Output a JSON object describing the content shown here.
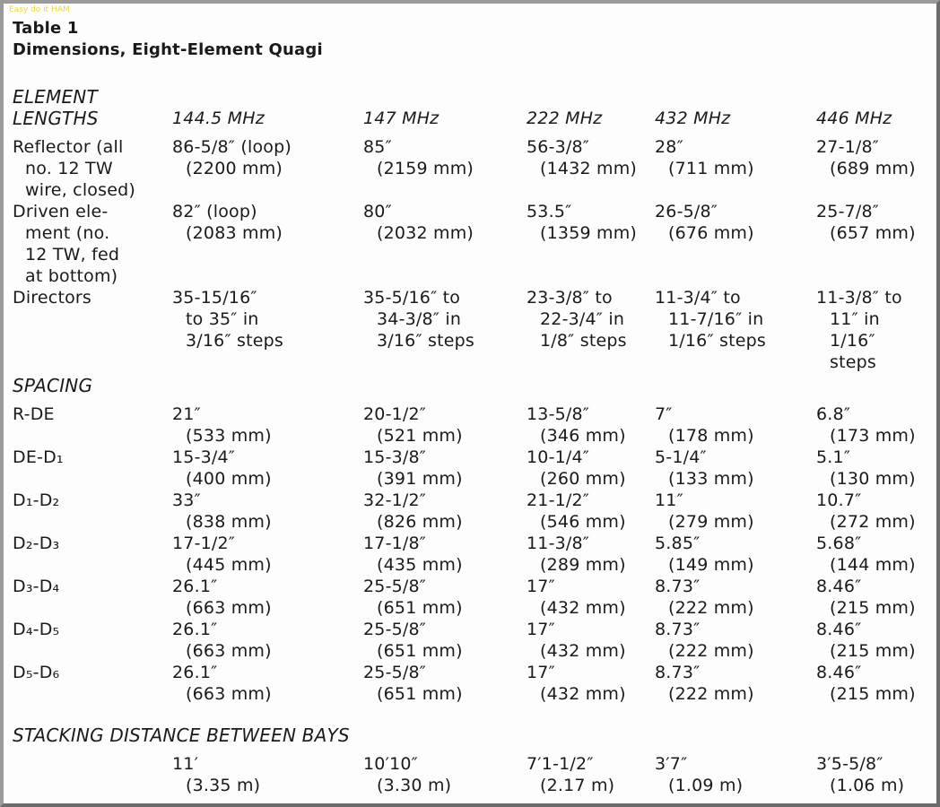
{
  "watermark": "Easy do it HAM",
  "header": {
    "title": "Table 1",
    "subtitle": "Dimensions, Eight-Element Quagi"
  },
  "columns": [
    "144.5 MHz",
    "147 MHz",
    "222 MHz",
    "432 MHz",
    "446 MHz"
  ],
  "sections": [
    {
      "heading": [
        "ELEMENT",
        "LENGTHS"
      ],
      "rows": [
        {
          "label": [
            "Reflector (all",
            "no. 12 TW",
            "wire, closed)"
          ],
          "cells": [
            [
              "86-5/8″ (loop)",
              "(2200 mm)"
            ],
            [
              "85″",
              "(2159 mm)"
            ],
            [
              "56-3/8″",
              "(1432 mm)"
            ],
            [
              "28″",
              "(711 mm)"
            ],
            [
              "27-1/8″",
              "(689 mm)"
            ]
          ]
        },
        {
          "label": [
            "Driven ele-",
            "ment (no.",
            "12 TW, fed",
            "at bottom)"
          ],
          "cells": [
            [
              "82″ (loop)",
              "(2083 mm)"
            ],
            [
              "80″",
              "(2032 mm)"
            ],
            [
              "53.5″",
              "(1359 mm)"
            ],
            [
              "26-5/8″",
              "(676 mm)"
            ],
            [
              "25-7/8″",
              "(657 mm)"
            ]
          ]
        },
        {
          "label": [
            "Directors"
          ],
          "cells": [
            [
              "35-15/16″",
              "to 35″ in",
              "3/16″ steps"
            ],
            [
              "35-5/16″ to",
              "34-3/8″ in",
              "3/16″ steps"
            ],
            [
              "23-3/8″ to",
              "22-3/4″ in",
              "1/8″ steps"
            ],
            [
              "11-3/4″ to",
              "11-7/16″ in",
              "1/16″ steps"
            ],
            [
              "11-3/8″ to",
              "11″ in",
              "1/16″",
              "steps"
            ]
          ]
        }
      ]
    },
    {
      "heading": [
        "SPACING"
      ],
      "rows": [
        {
          "label": [
            "R-DE"
          ],
          "cells": [
            [
              "21″",
              "(533 mm)"
            ],
            [
              "20-1/2″",
              "(521 mm)"
            ],
            [
              "13-5/8″",
              "(346 mm)"
            ],
            [
              "7″",
              "(178 mm)"
            ],
            [
              "6.8″",
              "(173 mm)"
            ]
          ]
        },
        {
          "label": [
            "DE-D₁"
          ],
          "cells": [
            [
              "15-3/4″",
              "(400 mm)"
            ],
            [
              "15-3/8″",
              "(391 mm)"
            ],
            [
              "10-1/4″",
              "(260 mm)"
            ],
            [
              "5-1/4″",
              "(133 mm)"
            ],
            [
              "5.1″",
              "(130 mm)"
            ]
          ]
        },
        {
          "label": [
            "D₁-D₂"
          ],
          "cells": [
            [
              "33″",
              "(838 mm)"
            ],
            [
              "32-1/2″",
              "(826 mm)"
            ],
            [
              "21-1/2″",
              "(546 mm)"
            ],
            [
              "11″",
              "(279 mm)"
            ],
            [
              "10.7″",
              "(272 mm)"
            ]
          ]
        },
        {
          "label": [
            "D₂-D₃"
          ],
          "cells": [
            [
              "17-1/2″",
              "(445 mm)"
            ],
            [
              "17-1/8″",
              "(435 mm)"
            ],
            [
              "11-3/8″",
              "(289 mm)"
            ],
            [
              "5.85″",
              "(149 mm)"
            ],
            [
              "5.68″",
              "(144 mm)"
            ]
          ]
        },
        {
          "label": [
            "D₃-D₄"
          ],
          "cells": [
            [
              "26.1″",
              "(663 mm)"
            ],
            [
              "25-5/8″",
              "(651 mm)"
            ],
            [
              "17″",
              "(432 mm)"
            ],
            [
              "8.73″",
              "(222 mm)"
            ],
            [
              "8.46″",
              "(215 mm)"
            ]
          ]
        },
        {
          "label": [
            "D₄-D₅"
          ],
          "cells": [
            [
              "26.1″",
              "(663 mm)"
            ],
            [
              "25-5/8″",
              "(651 mm)"
            ],
            [
              "17″",
              "(432 mm)"
            ],
            [
              "8.73″",
              "(222 mm)"
            ],
            [
              "8.46″",
              "(215 mm)"
            ]
          ]
        },
        {
          "label": [
            "D₅-D₆"
          ],
          "cells": [
            [
              "26.1″",
              "(663 mm)"
            ],
            [
              "25-5/8″",
              "(651 mm)"
            ],
            [
              "17″",
              "(432 mm)"
            ],
            [
              "8.73″",
              "(222 mm)"
            ],
            [
              "8.46″",
              "(215 mm)"
            ]
          ]
        }
      ]
    },
    {
      "heading": [
        "STACKING DISTANCE BETWEEN BAYS"
      ],
      "rows": [
        {
          "label": [],
          "cells": [
            [
              "11′",
              "(3.35 m)"
            ],
            [
              "10′10″",
              "(3.30 m)"
            ],
            [
              "7′1-1/2″",
              "(2.17 m)"
            ],
            [
              "3′7″",
              "(1.09 m)"
            ],
            [
              "3′5-5/8″",
              "(1.06 m)"
            ]
          ]
        }
      ]
    }
  ]
}
